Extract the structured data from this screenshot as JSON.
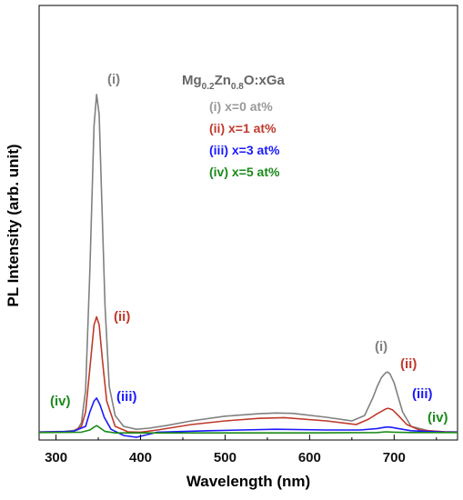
{
  "chart_data": {
    "type": "line",
    "xlabel": "Wavelength (nm)",
    "ylabel": "PL Intensity (arb. unit)",
    "xlim": [
      280,
      775
    ],
    "ylim": [
      0,
      1.0
    ],
    "xticks": [
      300,
      400,
      500,
      600,
      700
    ],
    "y_tick_labels": false,
    "legend": {
      "title_base": "Mg",
      "title_sub1": "0.2",
      "title_mid": "Zn",
      "title_sub2": "0.8",
      "title_tail": "O:xGa",
      "placement": "top-right",
      "entries": [
        "(i) x=0  at%",
        "(ii) x=1 at%",
        "(iii) x=3 at%",
        "(iv) x=5 at%"
      ]
    },
    "series": [
      {
        "label": "(i)",
        "color": "#808080",
        "x": [
          280,
          310,
          325,
          330,
          335,
          340,
          345,
          348,
          351,
          354,
          358,
          363,
          370,
          380,
          395,
          410,
          430,
          460,
          500,
          540,
          560,
          580,
          620,
          650,
          665,
          675,
          680,
          685,
          690,
          692,
          695,
          700,
          705,
          710,
          720,
          740,
          760,
          775
        ],
        "y": [
          0.005,
          0.006,
          0.01,
          0.03,
          0.12,
          0.45,
          0.85,
          0.935,
          0.88,
          0.65,
          0.35,
          0.13,
          0.05,
          0.02,
          0.012,
          0.015,
          0.022,
          0.035,
          0.048,
          0.055,
          0.057,
          0.056,
          0.045,
          0.035,
          0.05,
          0.1,
          0.13,
          0.155,
          0.168,
          0.17,
          0.165,
          0.14,
          0.1,
          0.06,
          0.02,
          0.008,
          0.005,
          0.005
        ]
      },
      {
        "label": "(ii)",
        "color": "#c0392b",
        "x": [
          280,
          320,
          330,
          335,
          340,
          345,
          348,
          351,
          355,
          360,
          370,
          385,
          400,
          420,
          460,
          500,
          540,
          570,
          620,
          655,
          670,
          680,
          690,
          693,
          698,
          705,
          715,
          730,
          760,
          775
        ],
        "y": [
          0.004,
          0.006,
          0.02,
          0.06,
          0.18,
          0.3,
          0.322,
          0.3,
          0.2,
          0.09,
          0.02,
          0.005,
          0.004,
          0.01,
          0.025,
          0.035,
          0.042,
          0.044,
          0.035,
          0.025,
          0.04,
          0.055,
          0.068,
          0.07,
          0.066,
          0.05,
          0.025,
          0.01,
          0.005,
          0.004
        ]
      },
      {
        "label": "(iii)",
        "color": "#1a1aff",
        "x": [
          280,
          320,
          335,
          340,
          345,
          348,
          352,
          357,
          365,
          380,
          395,
          420,
          480,
          560,
          620,
          660,
          680,
          690,
          695,
          705,
          720,
          760,
          775
        ],
        "y": [
          0.004,
          0.006,
          0.02,
          0.06,
          0.09,
          0.098,
          0.08,
          0.045,
          0.012,
          -0.005,
          -0.01,
          0.004,
          0.008,
          0.012,
          0.01,
          0.01,
          0.014,
          0.018,
          0.018,
          0.014,
          0.008,
          0.004,
          0.004
        ]
      },
      {
        "label": "(iv)",
        "color": "#1a8a1a",
        "x": [
          280,
          330,
          340,
          345,
          348,
          352,
          358,
          370,
          390,
          420,
          500,
          600,
          680,
          690,
          700,
          720,
          775
        ],
        "y": [
          0.003,
          0.004,
          0.01,
          0.018,
          0.022,
          0.016,
          0.006,
          0.002,
          0.002,
          0.002,
          0.002,
          0.002,
          0.003,
          0.005,
          0.004,
          0.003,
          0.003
        ]
      }
    ],
    "annotations": [
      {
        "text": "(i)",
        "color": "#808080",
        "near": "peak 1 of (i)"
      },
      {
        "text": "(ii)",
        "color": "#c0392b",
        "near": "peak 1 of (ii)"
      },
      {
        "text": "(iii)",
        "color": "#1a1aff",
        "near": "peak 1 of (iii)"
      },
      {
        "text": "(iv)",
        "color": "#1a8a1a",
        "near": "peak 1 of (iv)"
      },
      {
        "text": "(i)",
        "color": "#808080",
        "near": "peak 2 of (i)"
      },
      {
        "text": "(ii)",
        "color": "#c0392b",
        "near": "peak 2 of (ii)"
      },
      {
        "text": "(iii)",
        "color": "#1a1aff",
        "near": "peak 2 of (iii)"
      },
      {
        "text": "(iv)",
        "color": "#1a8a1a",
        "near": "peak 2 of (iv)"
      }
    ]
  }
}
